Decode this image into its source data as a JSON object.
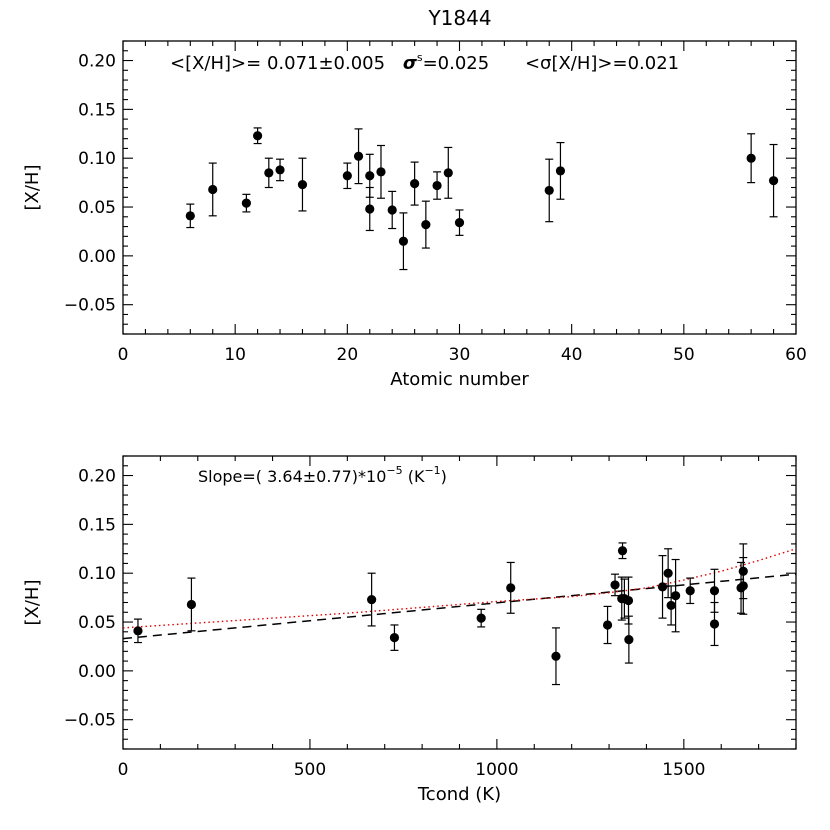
{
  "figure_title": "Y1844",
  "chart_data": [
    {
      "type": "scatter",
      "panel": "top",
      "xlabel": "Atomic number",
      "ylabel": "[X/H]",
      "xlim": [
        0,
        60
      ],
      "ylim": [
        -0.08,
        0.22
      ],
      "xticks": [
        0,
        10,
        20,
        30,
        40,
        50,
        60
      ],
      "xtick_labels": [
        "0",
        "10",
        "20",
        "30",
        "40",
        "50",
        "60"
      ],
      "yticks": [
        -0.05,
        0.0,
        0.05,
        0.1,
        0.15,
        0.2
      ],
      "ytick_labels": [
        "−0.05",
        "0.00",
        "0.05",
        "0.10",
        "0.15",
        "0.20"
      ],
      "annotation": {
        "mean_text": "<[X/H]>= 0.071±0.005",
        "sigma_s_text": "σ",
        "sigma_s_sup": "s",
        "sigma_s_value": "=0.025",
        "sigma_mean_text": "<σ[X/H]>=0.021"
      },
      "series": [
        {
          "x": [
            6,
            8,
            11,
            12,
            13,
            14,
            16,
            20,
            21,
            22,
            22,
            23,
            24,
            25,
            26,
            27,
            28,
            29,
            30,
            38,
            39,
            56,
            58
          ],
          "y": [
            0.041,
            0.068,
            0.054,
            0.123,
            0.085,
            0.088,
            0.073,
            0.082,
            0.102,
            0.082,
            0.048,
            0.086,
            0.047,
            0.015,
            0.074,
            0.032,
            0.072,
            0.085,
            0.034,
            0.067,
            0.087,
            0.1,
            0.077
          ],
          "yerr": [
            0.012,
            0.027,
            0.009,
            0.008,
            0.015,
            0.011,
            0.027,
            0.013,
            0.028,
            0.022,
            0.022,
            0.027,
            0.019,
            0.029,
            0.022,
            0.024,
            0.014,
            0.026,
            0.013,
            0.032,
            0.029,
            0.025,
            0.037
          ]
        }
      ]
    },
    {
      "type": "scatter",
      "panel": "bottom",
      "xlabel": "Tcond (K)",
      "ylabel": "[X/H]",
      "xlim": [
        0,
        1800
      ],
      "ylim": [
        -0.08,
        0.22
      ],
      "xticks": [
        0,
        500,
        1000,
        1500
      ],
      "xtick_labels": [
        "0",
        "500",
        "1000",
        "1500"
      ],
      "yticks": [
        -0.05,
        0.0,
        0.05,
        0.1,
        0.15,
        0.2
      ],
      "ytick_labels": [
        "−0.05",
        "0.00",
        "0.05",
        "0.10",
        "0.15",
        "0.20"
      ],
      "annotation": {
        "slope_prefix": "Slope=(  3.64±0.77)*10",
        "slope_exp": "−5",
        "slope_mid": " (K",
        "slope_unit_exp": "−1",
        "slope_suffix": ")"
      },
      "series": [
        {
          "x": [
            40,
            183,
            665,
            726,
            958,
            1037,
            1158,
            1296,
            1316,
            1334,
            1336,
            1341,
            1352,
            1353,
            1443,
            1458,
            1466,
            1478,
            1517,
            1582,
            1582,
            1653,
            1659,
            1659
          ],
          "y": [
            0.041,
            0.068,
            0.073,
            0.034,
            0.054,
            0.085,
            0.015,
            0.047,
            0.088,
            0.074,
            0.123,
            0.074,
            0.072,
            0.032,
            0.086,
            0.1,
            0.067,
            0.077,
            0.082,
            0.082,
            0.048,
            0.085,
            0.102,
            0.087
          ],
          "yerr": [
            0.012,
            0.027,
            0.027,
            0.013,
            0.009,
            0.026,
            0.029,
            0.019,
            0.011,
            0.022,
            0.008,
            0.02,
            0.024,
            0.024,
            0.032,
            0.025,
            0.02,
            0.037,
            0.013,
            0.022,
            0.022,
            0.026,
            0.028,
            0.029
          ]
        }
      ],
      "fit_line": {
        "style": "dashed",
        "color": "#000000",
        "x": [
          0,
          1800
        ],
        "y": [
          0.033,
          0.099
        ]
      },
      "fit_curve": {
        "style": "dotted",
        "color": "#e00000",
        "x": [
          0,
          200,
          400,
          600,
          800,
          1000,
          1200,
          1300,
          1400,
          1500,
          1600,
          1700,
          1800
        ],
        "y": [
          0.044,
          0.049,
          0.054,
          0.059,
          0.065,
          0.071,
          0.076,
          0.08,
          0.085,
          0.093,
          0.102,
          0.113,
          0.125
        ]
      }
    }
  ]
}
